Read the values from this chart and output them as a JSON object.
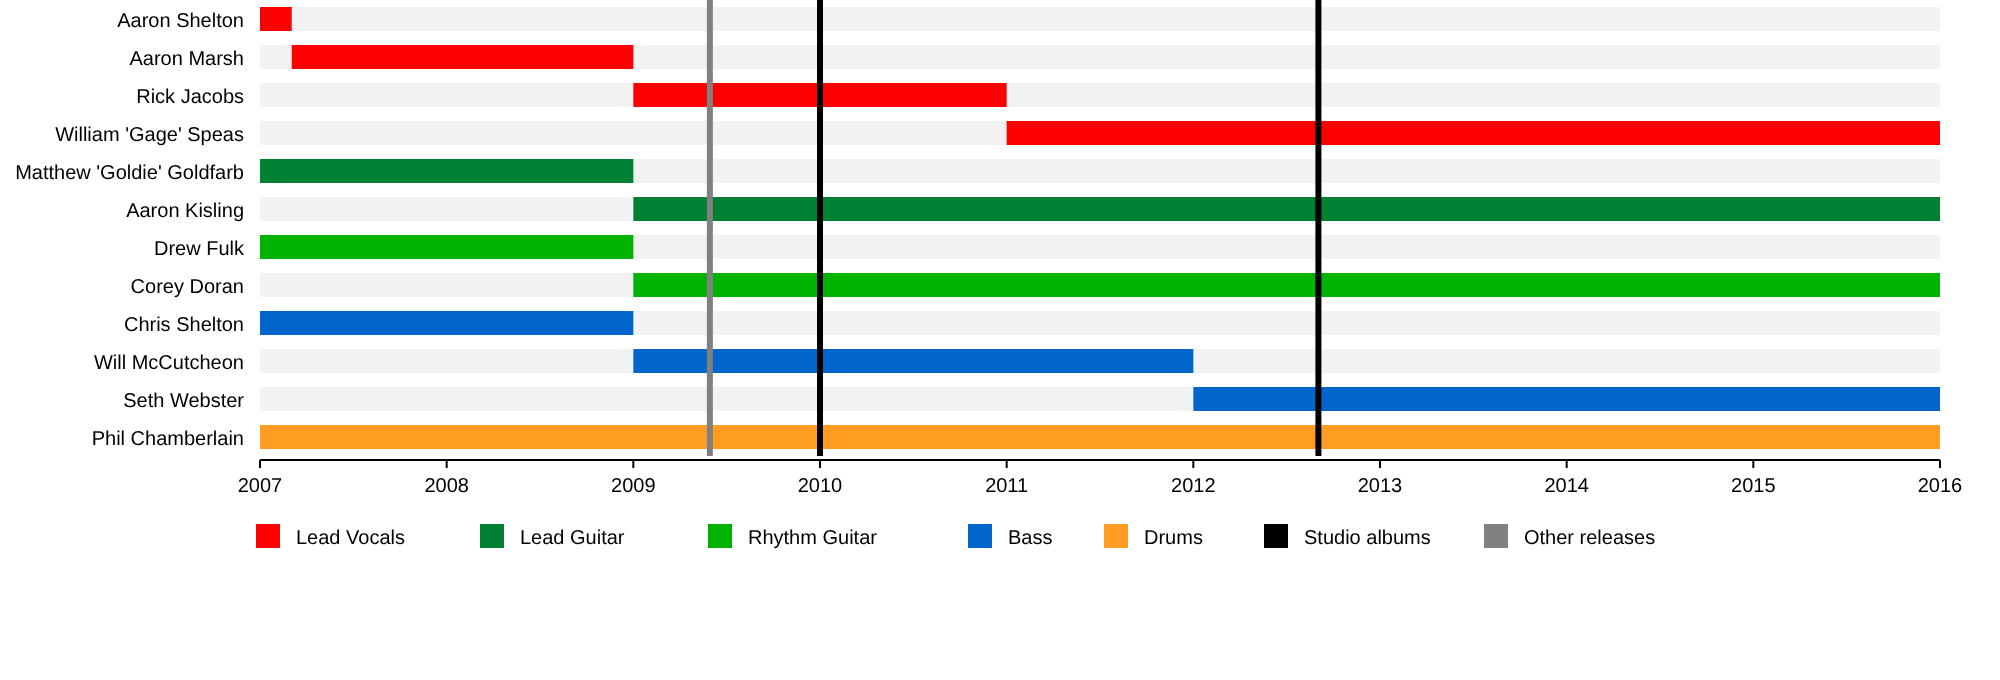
{
  "chart_data": {
    "type": "bar",
    "orientation": "horizontal",
    "categories": [
      "Aaron Shelton",
      "Aaron Marsh",
      "Rick Jacobs",
      "William 'Gage' Speas",
      "Matthew 'Goldie' Goldfarb",
      "Aaron Kisling",
      "Drew Fulk",
      "Corey Doran",
      "Chris Shelton",
      "Will McCutcheon",
      "Seth Webster",
      "Phil Chamberlain"
    ],
    "series": [
      {
        "name": "Lead Vocals",
        "color": "#ff0000",
        "base": [
          2007,
          2007.17,
          2009,
          2011,
          null,
          null,
          null,
          null,
          null,
          null,
          null,
          null
        ],
        "values": [
          0.17,
          1.83,
          2,
          5,
          null,
          null,
          null,
          null,
          null,
          null,
          null,
          null
        ]
      },
      {
        "name": "Lead Guitar",
        "color": "#008033",
        "base": [
          null,
          null,
          null,
          null,
          2007,
          2009,
          null,
          null,
          null,
          null,
          null,
          null
        ],
        "values": [
          null,
          null,
          null,
          null,
          2,
          7,
          null,
          null,
          null,
          null,
          null,
          null
        ]
      },
      {
        "name": "Rhythm Guitar",
        "color": "#00b300",
        "base": [
          null,
          null,
          null,
          null,
          null,
          null,
          2007,
          2009,
          null,
          null,
          null,
          null
        ],
        "values": [
          null,
          null,
          null,
          null,
          null,
          null,
          2,
          7,
          null,
          null,
          null,
          null
        ]
      },
      {
        "name": "Bass",
        "color": "#0066cc",
        "base": [
          null,
          null,
          null,
          null,
          null,
          null,
          null,
          null,
          2007,
          2009,
          2012,
          null
        ],
        "values": [
          null,
          null,
          null,
          null,
          null,
          null,
          null,
          null,
          2,
          3,
          4,
          null
        ]
      },
      {
        "name": "Drums",
        "color": "#ff9c21",
        "base": [
          null,
          null,
          null,
          null,
          null,
          null,
          null,
          null,
          null,
          null,
          null,
          2007
        ],
        "values": [
          null,
          null,
          null,
          null,
          null,
          null,
          null,
          null,
          null,
          null,
          null,
          9
        ]
      }
    ],
    "ref_lines": [
      {
        "axis": "x",
        "value": 2009.41,
        "label": "Other releases",
        "color": "#808080"
      },
      {
        "axis": "x",
        "value": 2010,
        "label": "Studio albums",
        "color": "#000000"
      },
      {
        "axis": "x",
        "value": 2012.67,
        "color": "#000000"
      }
    ],
    "xlim": [
      2007,
      2016
    ],
    "xticks": [
      2007,
      2008,
      2009,
      2010,
      2011,
      2012,
      2013,
      2014,
      2015,
      2016
    ],
    "grid": false,
    "legend": "bottom"
  }
}
